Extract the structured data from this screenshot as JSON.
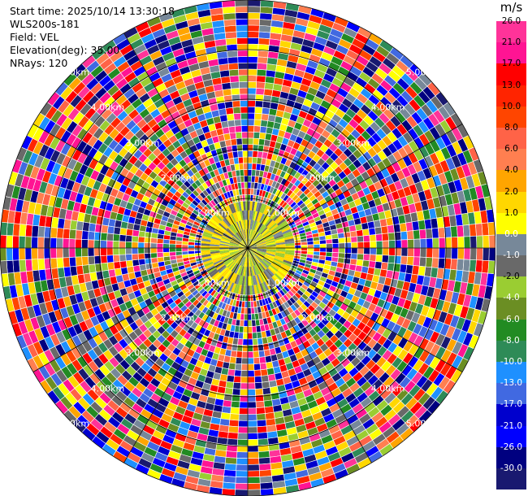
{
  "plot": {
    "start_time": "Start time: 2025/10/14 13:30:18",
    "site": "WLS200s-181",
    "field": "Field: VEL",
    "elevation": "Elevation(deg): 35.00",
    "nrays": "NRays: 120",
    "rays": 120,
    "range_ring_labels": [
      "1.00km",
      "2.00km",
      "3.00km",
      "4.00km",
      "5.00km"
    ]
  },
  "colorbar": {
    "unit": "m/s",
    "levels": [
      "26.0",
      "21.0",
      "17.0",
      "13.0",
      "10.0",
      "8.0",
      "6.0",
      "4.0",
      "2.0",
      "1.0",
      "0.0",
      "-1.0",
      "-2.0",
      "-4.0",
      "-6.0",
      "-8.0",
      "-10.0",
      "-13.0",
      "-17.0",
      "-21.0",
      "-26.0",
      "-30.0"
    ],
    "colors": [
      "#ff3399",
      "#ff1493",
      "#ff0000",
      "#ff2400",
      "#ff4500",
      "#ff6347",
      "#ff7f50",
      "#ffa500",
      "#ffd700",
      "#ffff00",
      "#778899",
      "#696969",
      "#9acd32",
      "#6b8e23",
      "#228b22",
      "#2e8b57",
      "#1e90ff",
      "#4169e1",
      "#0000cd",
      "#0000ff",
      "#000080",
      "#191970"
    ]
  }
}
